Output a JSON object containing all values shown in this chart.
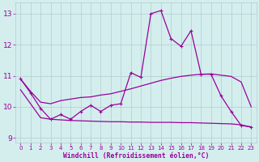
{
  "x": [
    0,
    1,
    2,
    3,
    4,
    5,
    6,
    7,
    8,
    9,
    10,
    11,
    12,
    13,
    14,
    15,
    16,
    17,
    18,
    19,
    20,
    21,
    22,
    23
  ],
  "y_main": [
    10.9,
    10.45,
    9.95,
    9.6,
    9.75,
    9.6,
    9.85,
    10.05,
    9.85,
    10.05,
    10.1,
    11.1,
    10.95,
    13.0,
    13.1,
    12.2,
    11.95,
    12.45,
    11.05,
    11.05,
    10.35,
    9.85,
    9.4,
    9.35
  ],
  "y_upper": [
    10.9,
    10.5,
    10.15,
    10.1,
    10.2,
    10.25,
    10.3,
    10.32,
    10.38,
    10.42,
    10.5,
    10.58,
    10.67,
    10.76,
    10.85,
    10.92,
    10.98,
    11.02,
    11.05,
    11.06,
    11.02,
    10.98,
    10.8,
    10.0
  ],
  "y_lower": [
    10.55,
    10.1,
    9.65,
    9.6,
    9.58,
    9.56,
    9.55,
    9.54,
    9.53,
    9.52,
    9.52,
    9.51,
    9.51,
    9.5,
    9.5,
    9.5,
    9.49,
    9.49,
    9.48,
    9.47,
    9.46,
    9.45,
    9.42,
    9.35
  ],
  "xlim": [
    -0.5,
    23.5
  ],
  "ylim": [
    8.85,
    13.35
  ],
  "yticks": [
    9,
    10,
    11,
    12,
    13
  ],
  "xticks": [
    0,
    1,
    2,
    3,
    4,
    5,
    6,
    7,
    8,
    9,
    10,
    11,
    12,
    13,
    14,
    15,
    16,
    17,
    18,
    19,
    20,
    21,
    22,
    23
  ],
  "xlabel": "Windchill (Refroidissement éolien,°C)",
  "line_color": "#990099",
  "bg_color": "#d4eeee",
  "grid_color": "#b0cccc",
  "xlabel_color": "#990099",
  "tick_color": "#990099"
}
